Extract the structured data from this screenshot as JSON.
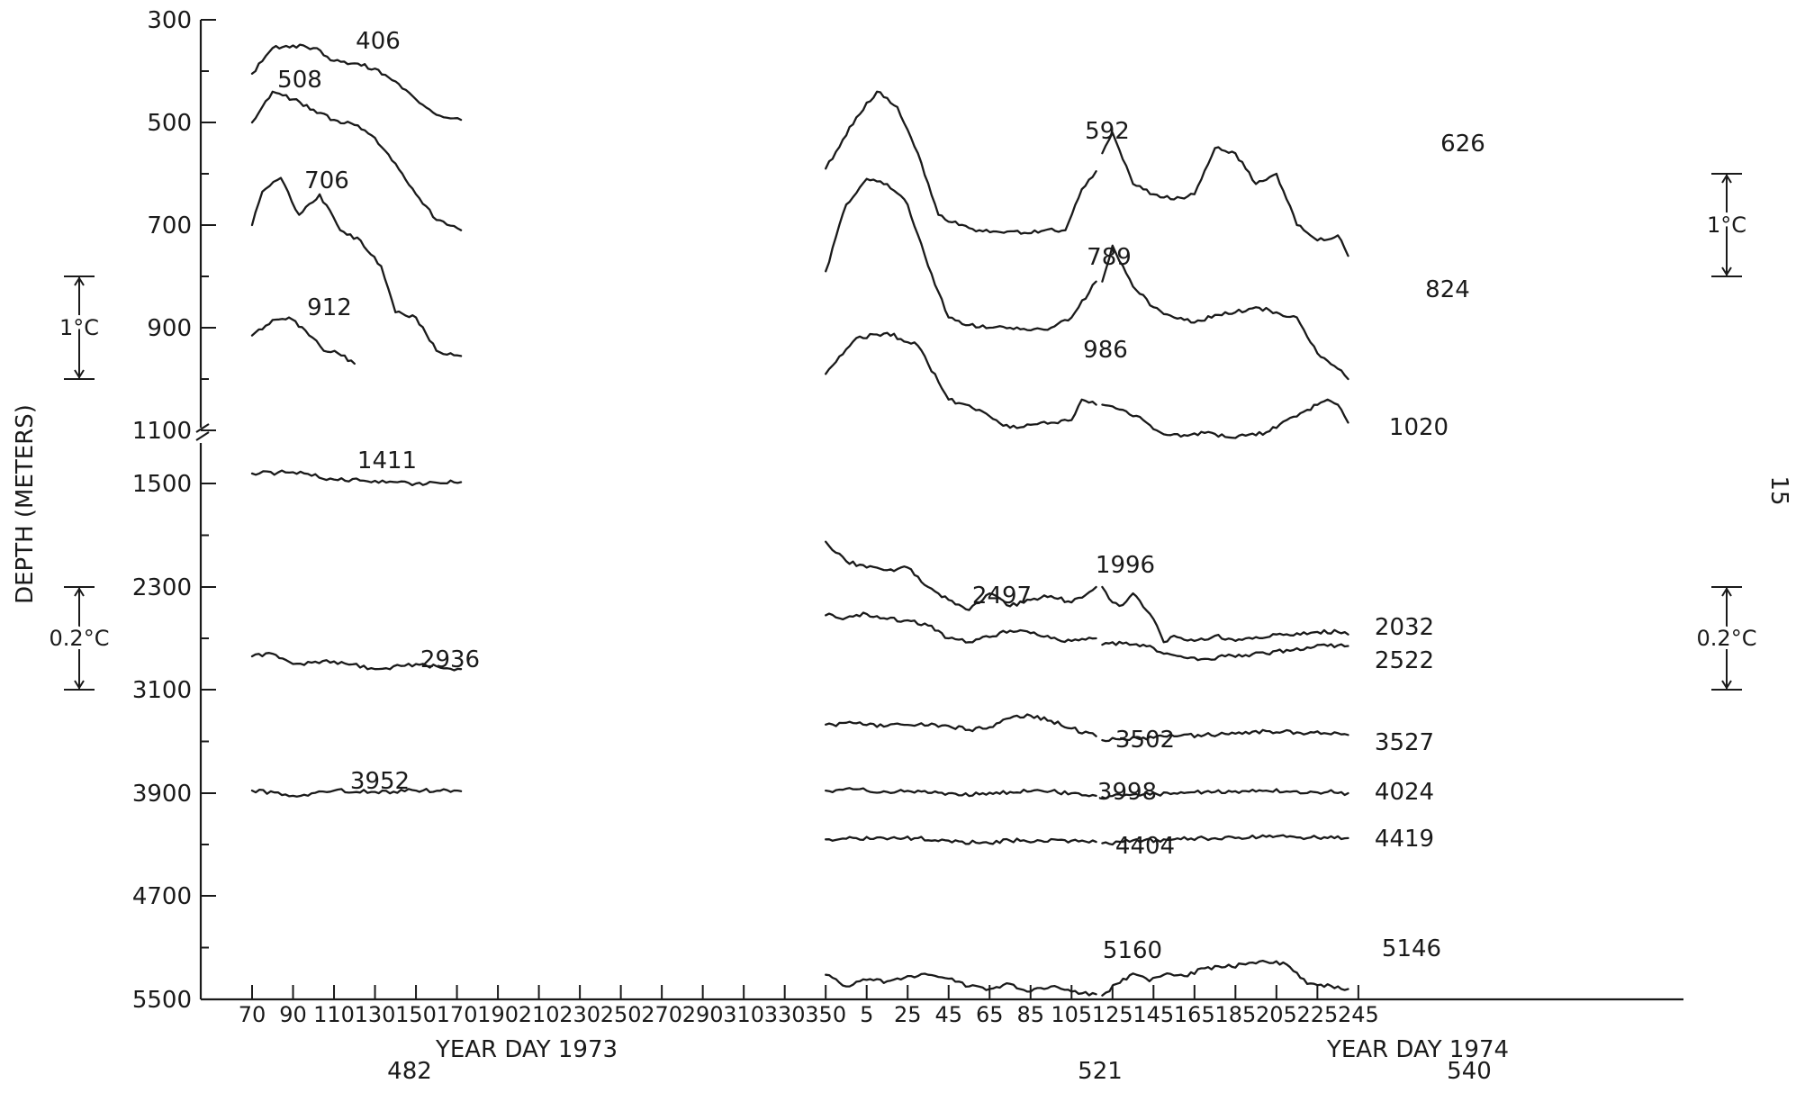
{
  "chart_data": {
    "type": "line",
    "ylabel": "DEPTH (METERS)",
    "y_ticks": [
      "300",
      "500",
      "700",
      "900",
      "1100",
      "1500",
      "2300",
      "3100",
      "3900",
      "4700",
      "5500"
    ],
    "x_ticks": [
      "70",
      "90",
      "110",
      "130",
      "150",
      "170",
      "190",
      "210",
      "230",
      "250",
      "270",
      "290",
      "310",
      "330",
      "350",
      "5",
      "25",
      "45",
      "65",
      "85",
      "105",
      "125",
      "145",
      "165",
      "185",
      "205",
      "225",
      "245"
    ],
    "xlabel_1973": "YEAR DAY 1973",
    "xlabel_1974": "YEAR DAY 1974",
    "moorings": [
      "482",
      "521",
      "540"
    ],
    "page_number": "15",
    "scale_bars": [
      {
        "label": "1°C",
        "side": "left",
        "from_depth": 800,
        "to_depth": 1000
      },
      {
        "label": "0.2°C",
        "side": "left",
        "from_depth": 2300,
        "to_depth": 3100
      },
      {
        "label": "1°C",
        "side": "right",
        "from_depth": 600,
        "to_depth": 800
      },
      {
        "label": "0.2°C",
        "side": "right",
        "from_depth": 2300,
        "to_depth": 3100
      }
    ],
    "series": [
      {
        "name": "406",
        "mooring": "482",
        "x": [
          70,
          80,
          90,
          100,
          110,
          120,
          130,
          140,
          150,
          160,
          172
        ],
        "y": [
          405,
          355,
          350,
          355,
          380,
          385,
          395,
          420,
          455,
          485,
          495
        ]
      },
      {
        "name": "508",
        "mooring": "482",
        "x": [
          70,
          80,
          90,
          100,
          110,
          120,
          130,
          140,
          150,
          160,
          172
        ],
        "y": [
          500,
          440,
          455,
          475,
          495,
          505,
          530,
          580,
          640,
          690,
          710
        ]
      },
      {
        "name": "706",
        "mooring": "482",
        "x": [
          70,
          75,
          84,
          93,
          103,
          113,
          123,
          133,
          140,
          150,
          160,
          172
        ],
        "y": [
          700,
          635,
          608,
          680,
          640,
          710,
          730,
          780,
          870,
          880,
          945,
          955
        ]
      },
      {
        "name": "912",
        "mooring": "482",
        "x": [
          70,
          80,
          88,
          96,
          105,
          112,
          120
        ],
        "y": [
          915,
          885,
          880,
          905,
          945,
          950,
          970
        ]
      },
      {
        "name": "1411",
        "mooring": "482",
        "x": [
          70,
          90,
          110,
          130,
          150,
          172
        ],
        "y": [
          1425,
          1415,
          1470,
          1480,
          1500,
          1490
        ]
      },
      {
        "name": "2936",
        "mooring": "482",
        "x": [
          70,
          80,
          90,
          110,
          130,
          150,
          172
        ],
        "y": [
          2840,
          2820,
          2900,
          2880,
          2940,
          2900,
          2940
        ]
      },
      {
        "name": "3952",
        "mooring": "482",
        "x": [
          70,
          90,
          110,
          130,
          150,
          172
        ],
        "y": [
          3880,
          3920,
          3880,
          3890,
          3880,
          3885
        ]
      },
      {
        "name": "592",
        "mooring": "521",
        "x": [
          350,
          365,
          375,
          385,
          395,
          405,
          415,
          425,
          437,
          447,
          457,
          467,
          475,
          482
        ],
        "y": [
          590,
          490,
          440,
          470,
          560,
          680,
          700,
          710,
          715,
          715,
          710,
          710,
          630,
          595
        ]
      },
      {
        "name": "789",
        "mooring": "521",
        "x": [
          350,
          360,
          370,
          380,
          390,
          400,
          410,
          420,
          430,
          440,
          450,
          460,
          470,
          482
        ],
        "y": [
          790,
          660,
          610,
          620,
          660,
          780,
          880,
          895,
          900,
          900,
          905,
          900,
          880,
          810
        ]
      },
      {
        "name": "986",
        "mooring": "521",
        "x": [
          350,
          365,
          380,
          395,
          410,
          425,
          440,
          455,
          470,
          475,
          482
        ],
        "y": [
          990,
          920,
          910,
          935,
          1040,
          1060,
          1095,
          1085,
          1080,
          1040,
          1050
        ]
      },
      {
        "name": "1996",
        "mooring": "521",
        "x": [
          350,
          360,
          370,
          380,
          390,
          400,
          410,
          420,
          430,
          440,
          450,
          460,
          470,
          482
        ],
        "y": [
          1950,
          2100,
          2150,
          2170,
          2150,
          2300,
          2400,
          2480,
          2350,
          2450,
          2400,
          2370,
          2420,
          2300
        ]
      },
      {
        "name": "2497",
        "mooring": "521",
        "x": [
          350,
          360,
          370,
          380,
          390,
          400,
          410,
          420,
          430,
          440,
          450,
          460,
          470,
          482
        ],
        "y": [
          2520,
          2540,
          2510,
          2550,
          2560,
          2600,
          2700,
          2730,
          2690,
          2640,
          2660,
          2700,
          2720,
          2700
        ]
      },
      {
        "name": "3502",
        "mooring": "521",
        "x": [
          350,
          365,
          380,
          395,
          410,
          420,
          430,
          440,
          450,
          460,
          470,
          482
        ],
        "y": [
          3370,
          3360,
          3380,
          3370,
          3380,
          3410,
          3390,
          3320,
          3300,
          3340,
          3400,
          3460
        ]
      },
      {
        "name": "3998",
        "mooring": "521",
        "x": [
          350,
          365,
          380,
          395,
          410,
          425,
          440,
          455,
          470,
          482
        ],
        "y": [
          3880,
          3870,
          3890,
          3880,
          3900,
          3910,
          3890,
          3880,
          3900,
          3920
        ]
      },
      {
        "name": "4404",
        "mooring": "521",
        "x": [
          350,
          365,
          380,
          395,
          410,
          425,
          440,
          455,
          470,
          482
        ],
        "y": [
          4260,
          4250,
          4260,
          4250,
          4270,
          4290,
          4270,
          4270,
          4270,
          4280
        ]
      },
      {
        "name": "5160",
        "mooring": "521",
        "x": [
          350,
          360,
          370,
          380,
          390,
          400,
          410,
          420,
          430,
          440,
          450,
          460,
          470,
          482
        ],
        "y": [
          5310,
          5400,
          5350,
          5360,
          5320,
          5310,
          5340,
          5400,
          5420,
          5380,
          5440,
          5400,
          5440,
          5460
        ]
      },
      {
        "name": "626",
        "mooring": "540",
        "x": [
          485,
          490,
          500,
          510,
          520,
          530,
          540,
          550,
          560,
          570,
          580,
          590,
          600,
          605
        ],
        "y": [
          560,
          520,
          620,
          640,
          650,
          640,
          550,
          560,
          620,
          600,
          700,
          730,
          720,
          760
        ]
      },
      {
        "name": "824",
        "mooring": "540",
        "x": [
          485,
          490,
          500,
          510,
          520,
          530,
          540,
          550,
          560,
          570,
          580,
          590,
          600,
          605
        ],
        "y": [
          810,
          740,
          820,
          860,
          880,
          890,
          875,
          870,
          860,
          870,
          880,
          950,
          980,
          1000
        ]
      },
      {
        "name": "1020",
        "mooring": "540",
        "x": [
          485,
          495,
          505,
          515,
          525,
          535,
          545,
          555,
          565,
          575,
          585,
          595,
          600,
          605
        ],
        "y": [
          1050,
          1060,
          1080,
          1130,
          1135,
          1120,
          1150,
          1140,
          1115,
          1080,
          1060,
          1040,
          1050,
          1085
        ]
      },
      {
        "name": "2032",
        "mooring": "540",
        "x": [
          485,
          490,
          495,
          500,
          510,
          515,
          520,
          530,
          540,
          550,
          560,
          570,
          580,
          590,
          600,
          605
        ],
        "y": [
          2300,
          2420,
          2440,
          2350,
          2550,
          2730,
          2680,
          2720,
          2680,
          2720,
          2690,
          2670,
          2660,
          2650,
          2650,
          2670
        ]
      },
      {
        "name": "2522",
        "mooring": "540",
        "x": [
          485,
          495,
          505,
          515,
          525,
          535,
          545,
          555,
          565,
          575,
          585,
          595,
          605
        ],
        "y": [
          2750,
          2740,
          2750,
          2820,
          2850,
          2860,
          2840,
          2830,
          2820,
          2790,
          2770,
          2760,
          2760
        ]
      },
      {
        "name": "3527",
        "mooring": "540",
        "x": [
          485,
          495,
          505,
          520,
          535,
          550,
          565,
          580,
          595,
          605
        ],
        "y": [
          3490,
          3480,
          3470,
          3460,
          3450,
          3440,
          3420,
          3430,
          3440,
          3450
        ]
      },
      {
        "name": "4024",
        "mooring": "540",
        "x": [
          485,
          495,
          505,
          520,
          535,
          550,
          565,
          580,
          595,
          605
        ],
        "y": [
          3930,
          3920,
          3910,
          3900,
          3890,
          3885,
          3880,
          3885,
          3890,
          3900
        ]
      },
      {
        "name": "4419",
        "mooring": "540",
        "x": [
          485,
          495,
          505,
          520,
          535,
          550,
          565,
          580,
          595,
          605
        ],
        "y": [
          4290,
          4280,
          4270,
          4260,
          4250,
          4250,
          4240,
          4245,
          4250,
          4250
        ]
      },
      {
        "name": "5146",
        "mooring": "540",
        "x": [
          485,
          492,
          500,
          508,
          515,
          525,
          535,
          545,
          555,
          565,
          575,
          585,
          590,
          600,
          605
        ],
        "y": [
          5470,
          5380,
          5300,
          5360,
          5310,
          5320,
          5260,
          5250,
          5230,
          5210,
          5230,
          5380,
          5390,
          5400,
          5420
        ]
      }
    ]
  }
}
